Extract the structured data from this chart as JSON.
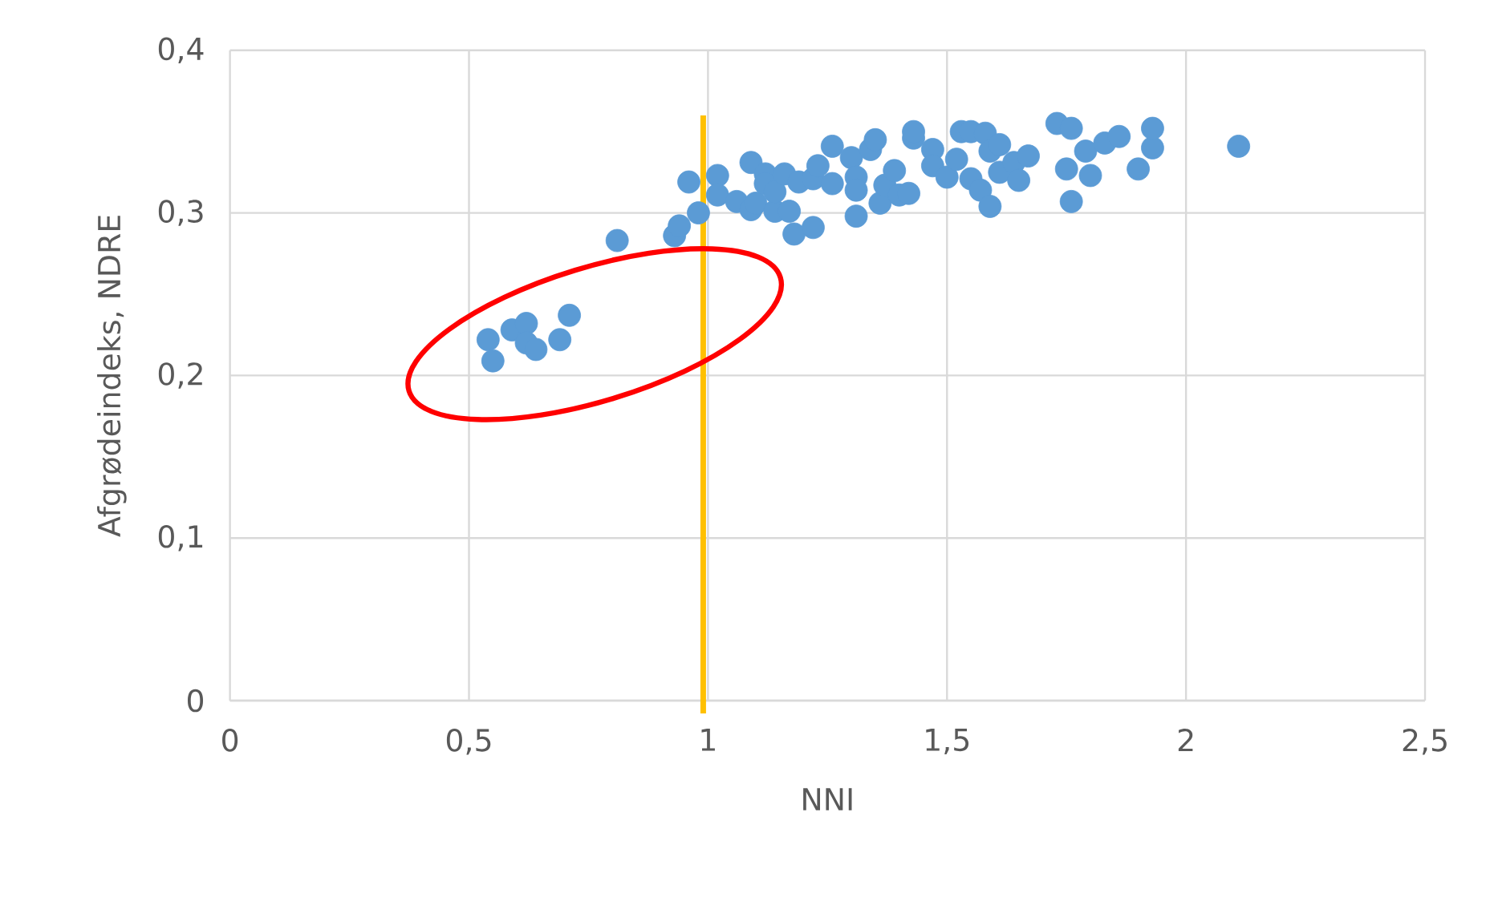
{
  "chart_data": {
    "type": "scatter",
    "xlabel": "NNI",
    "ylabel": "Afgrødeindeks, NDRE",
    "xlim": [
      0,
      2.5
    ],
    "ylim": [
      0,
      0.4
    ],
    "xticks": [
      0,
      {
        "value": 0.5,
        "label": "0,5"
      },
      1,
      {
        "value": 1.5,
        "label": "1,5"
      },
      2,
      {
        "value": 2.5,
        "label": "2,5"
      }
    ],
    "yticks": [
      0,
      {
        "value": 0.1,
        "label": "0,1"
      },
      {
        "value": 0.2,
        "label": "0,2"
      },
      {
        "value": 0.3,
        "label": "0,3"
      },
      {
        "value": 0.4,
        "label": "0,4"
      }
    ],
    "grid": true,
    "marker": "circle",
    "ref_lines": [
      {
        "axis": "x",
        "value": 0.99,
        "color": "#ffc000"
      }
    ],
    "series": [
      {
        "color": "#5b9bd5",
        "x": [
          0.54,
          0.55,
          0.59,
          0.62,
          0.62,
          0.64,
          0.69,
          0.71,
          0.81,
          0.93,
          0.94,
          0.96,
          0.98,
          1.02,
          1.02,
          1.06,
          1.09,
          1.09,
          1.1,
          1.12,
          1.12,
          1.14,
          1.14,
          1.16,
          1.17,
          1.18,
          1.19,
          1.22,
          1.22,
          1.23,
          1.26,
          1.26,
          1.3,
          1.31,
          1.31,
          1.31,
          1.34,
          1.35,
          1.36,
          1.37,
          1.39,
          1.4,
          1.42,
          1.43,
          1.43,
          1.47,
          1.47,
          1.5,
          1.52,
          1.53,
          1.55,
          1.55,
          1.57,
          1.58,
          1.59,
          1.59,
          1.61,
          1.61,
          1.64,
          1.65,
          1.67,
          1.73,
          1.76,
          1.75,
          1.76,
          1.79,
          1.8,
          1.83,
          1.86,
          1.9,
          1.93,
          1.93,
          2.11
        ],
        "values": [
          0.222,
          0.209,
          0.228,
          0.232,
          0.22,
          0.216,
          0.222,
          0.237,
          0.283,
          0.286,
          0.292,
          0.319,
          0.3,
          0.323,
          0.311,
          0.307,
          0.331,
          0.302,
          0.306,
          0.324,
          0.318,
          0.301,
          0.313,
          0.324,
          0.301,
          0.287,
          0.319,
          0.291,
          0.321,
          0.329,
          0.341,
          0.318,
          0.334,
          0.322,
          0.298,
          0.314,
          0.339,
          0.345,
          0.306,
          0.317,
          0.326,
          0.311,
          0.312,
          0.346,
          0.35,
          0.339,
          0.329,
          0.322,
          0.333,
          0.35,
          0.35,
          0.321,
          0.314,
          0.349,
          0.338,
          0.304,
          0.342,
          0.325,
          0.331,
          0.32,
          0.335,
          0.355,
          0.352,
          0.327,
          0.307,
          0.338,
          0.323,
          0.343,
          0.347,
          0.327,
          0.34,
          0.352,
          0.341
        ]
      }
    ]
  }
}
